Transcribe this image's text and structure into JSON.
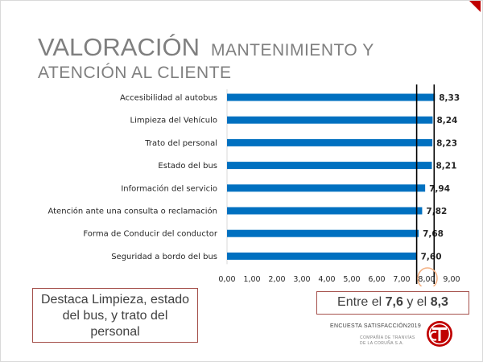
{
  "title": {
    "main": "VALORACIÓN",
    "subtitle_line1": "MANTENIMIENTO Y",
    "subtitle_line2": "ATENCIÓN AL CLIENTE"
  },
  "chart_data": {
    "type": "bar",
    "orientation": "horizontal",
    "categories": [
      "Accesibilidad al autobus",
      "Limpieza del Vehículo",
      "Trato del personal",
      "Estado del bus",
      "Información del servicio",
      "Atención ante una consulta o reclamación",
      "Forma de Conducir del conductor",
      "Seguridad a bordo del bus"
    ],
    "values": [
      8.33,
      8.24,
      8.23,
      8.21,
      7.94,
      7.82,
      7.68,
      7.6
    ],
    "data_labels": [
      "8,33",
      "8,24",
      "8,23",
      "8,21",
      "7,94",
      "7,82",
      "7,68",
      "7,60"
    ],
    "xlim": [
      0,
      9
    ],
    "x_ticks": [
      "0,00",
      "1,00",
      "2,00",
      "3,00",
      "4,00",
      "5,00",
      "6,00",
      "7,00",
      "8,00",
      "9,00"
    ],
    "reference_lines": [
      7.6,
      8.3
    ],
    "highlighted_tick": "8,00",
    "grid": false,
    "bar_color": "#0070c0",
    "highlight_color": "#f4b183"
  },
  "box_left": {
    "line1": "Destaca Limpieza, estado",
    "line2": "del bus, y trato del",
    "line3": "personal"
  },
  "box_right": {
    "text_before": "Entre el ",
    "value1": "7,6",
    "text_middle": " y el ",
    "value2": "8,3"
  },
  "footer": {
    "survey": "ENCUESTA SATISFACCIÓN2019",
    "company_line1": "COMPAÑÍA DE TRANVÍAS",
    "company_line2": "DE LA CORUÑA S.A."
  },
  "colors": {
    "accent": "#c00000",
    "box_border": "#a5514c",
    "title": "#7f7f7f"
  }
}
